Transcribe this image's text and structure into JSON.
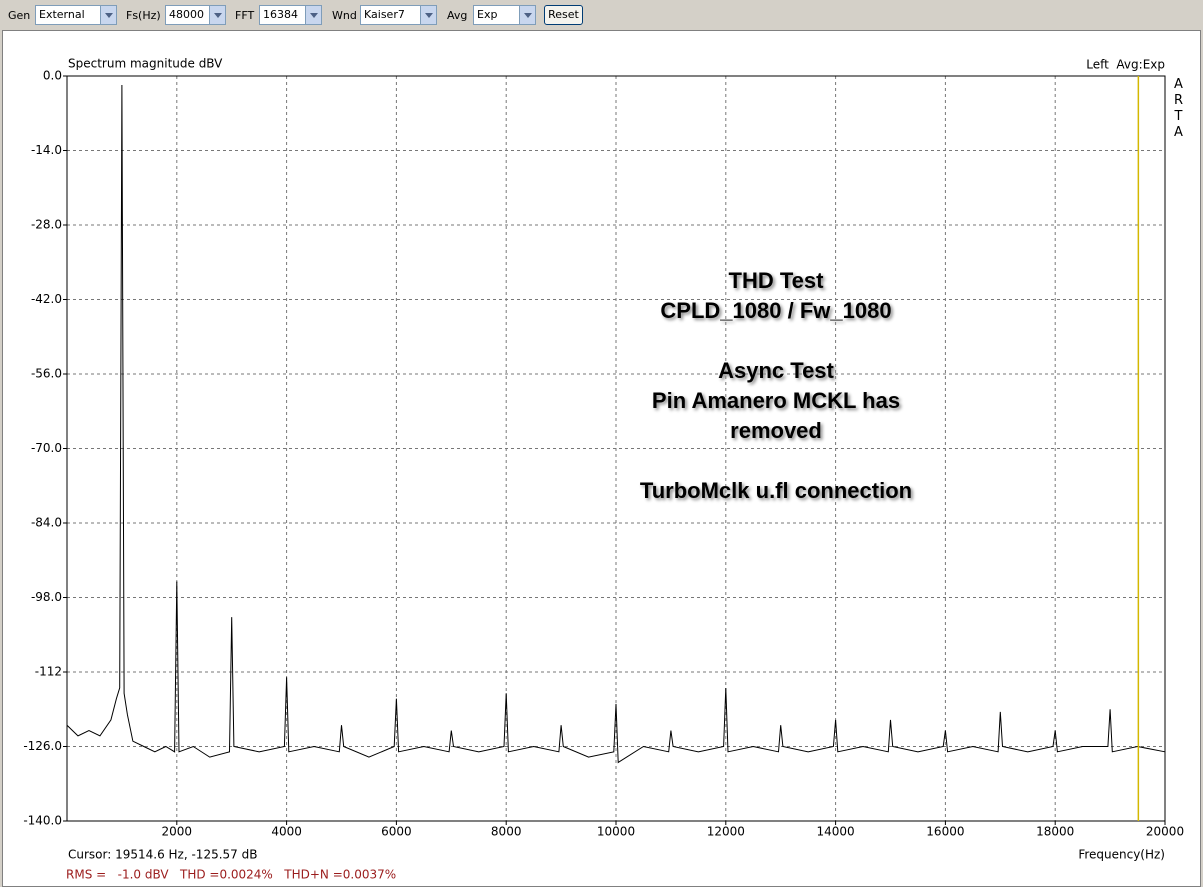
{
  "toolbar": {
    "controls": [
      {
        "label": "Gen",
        "value": "External"
      },
      {
        "label": "Fs(Hz)",
        "value": "48000"
      },
      {
        "label": "FFT",
        "value": "16384"
      },
      {
        "label": "Wnd",
        "value": "Kaiser7"
      },
      {
        "label": "Avg",
        "value": "Exp"
      }
    ],
    "button": "Reset"
  },
  "chart_data": {
    "type": "line",
    "title": "Spectrum magnitude dBV",
    "channel_label": "Left  Avg:Exp",
    "watermark": "ARTA",
    "x_label": "Frequency(Hz)",
    "annotation": [
      "THD Test",
      "CPLD_1080 / Fw_1080",
      "Async Test",
      "Pin Amanero MCKL has",
      "removed",
      "TurboMclk u.fl connection"
    ],
    "color": "#000000",
    "grid": true,
    "xlim": [
      0,
      20000
    ],
    "xticks": [
      2000,
      4000,
      6000,
      8000,
      10000,
      12000,
      14000,
      16000,
      18000,
      20000
    ],
    "ylim": [
      -140,
      0
    ],
    "yticks": [
      {
        "value": 0,
        "label": "0.0"
      },
      {
        "value": -14,
        "label": "-14.0"
      },
      {
        "value": -28,
        "label": "-28.0"
      },
      {
        "value": -42,
        "label": "-42.0"
      },
      {
        "value": -56,
        "label": "-56.0"
      },
      {
        "value": -70,
        "label": "-70.0"
      },
      {
        "value": -84,
        "label": "-84.0"
      },
      {
        "value": -98,
        "label": "-98.0"
      },
      {
        "value": -112,
        "label": "-112"
      },
      {
        "value": -126,
        "label": "-126.0"
      },
      {
        "value": -140,
        "label": "-140.0"
      }
    ],
    "cursor_x": 19514.6,
    "cursor_color": "#d4b800",
    "x": [
      0,
      200,
      400,
      600,
      800,
      900,
      960,
      1000,
      1040,
      1100,
      1200,
      1400,
      1600,
      1800,
      1960,
      2000,
      2040,
      2300,
      2600,
      2960,
      3000,
      3040,
      3500,
      3960,
      4000,
      4040,
      4500,
      4960,
      5000,
      5040,
      5500,
      5960,
      6000,
      6040,
      6500,
      6960,
      7000,
      7040,
      7500,
      7960,
      8000,
      8040,
      8500,
      8960,
      9000,
      9040,
      9500,
      9960,
      10000,
      10040,
      10500,
      10960,
      11000,
      11040,
      11500,
      11960,
      12000,
      12040,
      12500,
      12960,
      13000,
      13040,
      13500,
      13960,
      14000,
      14040,
      14500,
      14960,
      15000,
      15040,
      15500,
      15960,
      16000,
      16040,
      16500,
      16960,
      17000,
      17040,
      17500,
      17960,
      18000,
      18040,
      18500,
      18960,
      19000,
      19040,
      19500,
      20000
    ],
    "values": [
      -122,
      -124,
      -123,
      -124,
      -121,
      -117,
      -115,
      -1.7,
      -116,
      -120,
      -125,
      -126,
      -127,
      -126,
      -127,
      -95,
      -127,
      -126,
      -128,
      -127,
      -101.7,
      -126,
      -127,
      -126,
      -113,
      -127,
      -126,
      -127,
      -122,
      -126,
      -128,
      -126,
      -117,
      -127,
      -126,
      -127,
      -123,
      -126,
      -127,
      -126,
      -116,
      -127,
      -126,
      -127,
      -122,
      -126,
      -128,
      -127,
      -118,
      -129,
      -126,
      -127,
      -123,
      -126,
      -127,
      -126,
      -115,
      -127,
      -126,
      -127,
      -122,
      -126,
      -127,
      -126,
      -121,
      -127,
      -126,
      -127,
      -121,
      -126,
      -127,
      -126,
      -123,
      -127,
      -126,
      -127,
      -119.5,
      -126,
      -127,
      -126,
      -123,
      -127,
      -126,
      -126,
      -119,
      -127,
      -126,
      -127
    ]
  },
  "footer": {
    "cursor_readout": "Cursor: 19514.6 Hz, -125.57 dB",
    "measurements": "RMS =   -1.0 dBV   THD =0.0024%   THD+N =0.0037%"
  }
}
